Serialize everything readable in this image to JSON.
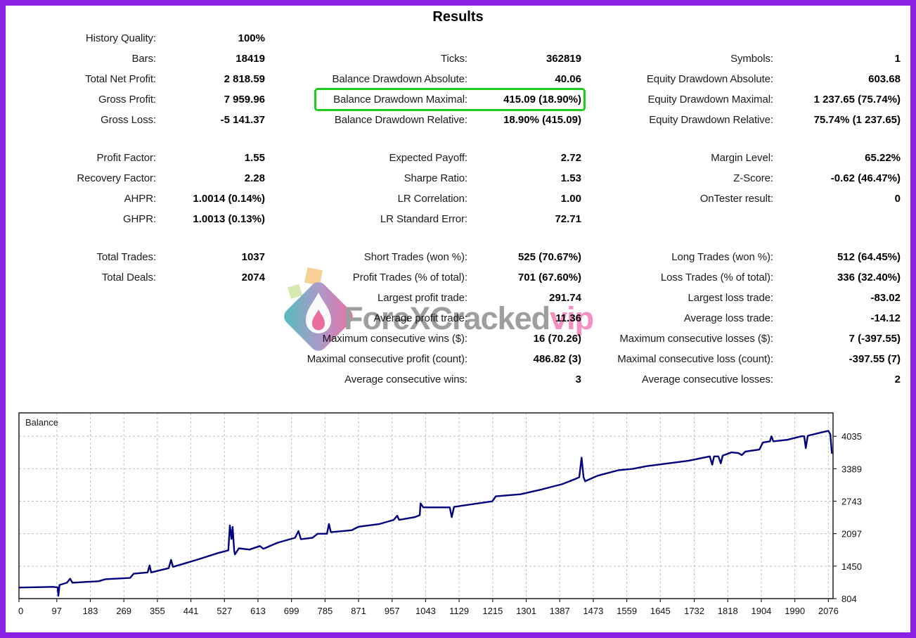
{
  "title": "Results",
  "accent_colors": {
    "page_border": "#8a22e6",
    "highlight_box": "#1ecb1e",
    "balance_line": "#00007e",
    "watermark_gray": "#8d8d8d",
    "watermark_pink": "#f57ab5"
  },
  "watermark": {
    "text_main": "ForeXCracked",
    "text_suffix": "vip",
    "logo": "forexcracked-diamond-flame"
  },
  "stats": {
    "highlight": {
      "block": 0,
      "row": 3,
      "col": 1
    },
    "blocks": [
      {
        "rows": [
          [
            "History Quality:",
            "100%",
            "",
            "",
            "",
            ""
          ],
          [
            "Bars:",
            "18419",
            "Ticks:",
            "362819",
            "Symbols:",
            "1"
          ],
          [
            "Total Net Profit:",
            "2 818.59",
            "Balance Drawdown Absolute:",
            "40.06",
            "Equity Drawdown Absolute:",
            "603.68"
          ],
          [
            "Gross Profit:",
            "7 959.96",
            "Balance Drawdown Maximal:",
            "415.09 (18.90%)",
            "Equity Drawdown Maximal:",
            "1 237.65 (75.74%)"
          ],
          [
            "Gross Loss:",
            "-5 141.37",
            "Balance Drawdown Relative:",
            "18.90% (415.09)",
            "Equity Drawdown Relative:",
            "75.74% (1 237.65)"
          ]
        ]
      },
      {
        "rows": [
          [
            "Profit Factor:",
            "1.55",
            "Expected Payoff:",
            "2.72",
            "Margin Level:",
            "65.22%"
          ],
          [
            "Recovery Factor:",
            "2.28",
            "Sharpe Ratio:",
            "1.53",
            "Z-Score:",
            "-0.62 (46.47%)"
          ],
          [
            "AHPR:",
            "1.0014 (0.14%)",
            "LR Correlation:",
            "1.00",
            "OnTester result:",
            "0"
          ],
          [
            "GHPR:",
            "1.0013 (0.13%)",
            "LR Standard Error:",
            "72.71",
            "",
            ""
          ]
        ]
      },
      {
        "rows": [
          [
            "Total Trades:",
            "1037",
            "Short Trades (won %):",
            "525 (70.67%)",
            "Long Trades (won %):",
            "512 (64.45%)"
          ],
          [
            "Total Deals:",
            "2074",
            "Profit Trades (% of total):",
            "701 (67.60%)",
            "Loss Trades (% of total):",
            "336 (32.40%)"
          ],
          [
            "",
            "",
            "Largest profit trade:",
            "291.74",
            "Largest loss trade:",
            "-83.02"
          ],
          [
            "",
            "",
            "Average profit trade:",
            "11.36",
            "Average loss trade:",
            "-14.12"
          ],
          [
            "",
            "",
            "Maximum consecutive wins ($):",
            "16 (70.26)",
            "Maximum consecutive losses ($):",
            "7 (-397.55)"
          ],
          [
            "",
            "",
            "Maximal consecutive profit (count):",
            "486.82 (3)",
            "Maximal consecutive loss (count):",
            "-397.55 (7)"
          ],
          [
            "",
            "",
            "Average consecutive wins:",
            "3",
            "Average consecutive losses:",
            "2"
          ]
        ]
      }
    ]
  },
  "chart_data": {
    "type": "line",
    "title": "Balance",
    "xlabel": "",
    "ylabel": "",
    "legend_position": "top-left-inside",
    "grid": "dashed",
    "xlim": [
      0,
      2088
    ],
    "ylim": [
      804,
      4500
    ],
    "x_ticks": [
      0,
      97,
      183,
      269,
      355,
      441,
      527,
      613,
      699,
      785,
      871,
      957,
      1043,
      1129,
      1215,
      1301,
      1387,
      1473,
      1559,
      1645,
      1732,
      1818,
      1904,
      1990,
      2076
    ],
    "y_ticks": [
      804,
      1450,
      2097,
      2743,
      3389,
      4035
    ],
    "series": [
      {
        "name": "Balance",
        "points": [
          [
            0,
            1024
          ],
          [
            87,
            1038
          ],
          [
            99,
            1030
          ],
          [
            101,
            860
          ],
          [
            104,
            1075
          ],
          [
            123,
            1120
          ],
          [
            131,
            1200
          ],
          [
            137,
            1120
          ],
          [
            204,
            1150
          ],
          [
            222,
            1190
          ],
          [
            285,
            1215
          ],
          [
            294,
            1300
          ],
          [
            330,
            1325
          ],
          [
            335,
            1465
          ],
          [
            339,
            1325
          ],
          [
            384,
            1410
          ],
          [
            390,
            1575
          ],
          [
            395,
            1435
          ],
          [
            456,
            1575
          ],
          [
            510,
            1710
          ],
          [
            537,
            1765
          ],
          [
            541,
            2260
          ],
          [
            545,
            1990
          ],
          [
            548,
            2230
          ],
          [
            552,
            1765
          ],
          [
            554,
            1685
          ],
          [
            564,
            1805
          ],
          [
            591,
            1780
          ],
          [
            618,
            1850
          ],
          [
            627,
            1795
          ],
          [
            663,
            1915
          ],
          [
            708,
            2015
          ],
          [
            717,
            2150
          ],
          [
            723,
            1985
          ],
          [
            753,
            2015
          ],
          [
            766,
            2095
          ],
          [
            790,
            2095
          ],
          [
            795,
            2290
          ],
          [
            800,
            2125
          ],
          [
            853,
            2165
          ],
          [
            871,
            2235
          ],
          [
            925,
            2290
          ],
          [
            961,
            2370
          ],
          [
            970,
            2455
          ],
          [
            975,
            2370
          ],
          [
            1015,
            2425
          ],
          [
            1028,
            2465
          ],
          [
            1030,
            2700
          ],
          [
            1037,
            2620
          ],
          [
            1105,
            2620
          ],
          [
            1110,
            2425
          ],
          [
            1116,
            2630
          ],
          [
            1178,
            2700
          ],
          [
            1214,
            2740
          ],
          [
            1223,
            2840
          ],
          [
            1286,
            2880
          ],
          [
            1340,
            2975
          ],
          [
            1394,
            3085
          ],
          [
            1430,
            3195
          ],
          [
            1437,
            3220
          ],
          [
            1443,
            3610
          ],
          [
            1448,
            3220
          ],
          [
            1452,
            3140
          ],
          [
            1484,
            3250
          ],
          [
            1538,
            3360
          ],
          [
            1574,
            3385
          ],
          [
            1610,
            3440
          ],
          [
            1664,
            3495
          ],
          [
            1718,
            3550
          ],
          [
            1772,
            3635
          ],
          [
            1778,
            3470
          ],
          [
            1783,
            3635
          ],
          [
            1794,
            3635
          ],
          [
            1800,
            3495
          ],
          [
            1805,
            3650
          ],
          [
            1827,
            3715
          ],
          [
            1845,
            3700
          ],
          [
            1854,
            3660
          ],
          [
            1863,
            3730
          ],
          [
            1899,
            3770
          ],
          [
            1908,
            3910
          ],
          [
            1926,
            3935
          ],
          [
            1930,
            4035
          ],
          [
            1935,
            3935
          ],
          [
            1971,
            3965
          ],
          [
            2007,
            4035
          ],
          [
            2014,
            4035
          ],
          [
            2018,
            3800
          ],
          [
            2023,
            4045
          ],
          [
            2052,
            4100
          ],
          [
            2076,
            4145
          ],
          [
            2081,
            4075
          ],
          [
            2085,
            3705
          ]
        ]
      }
    ]
  }
}
